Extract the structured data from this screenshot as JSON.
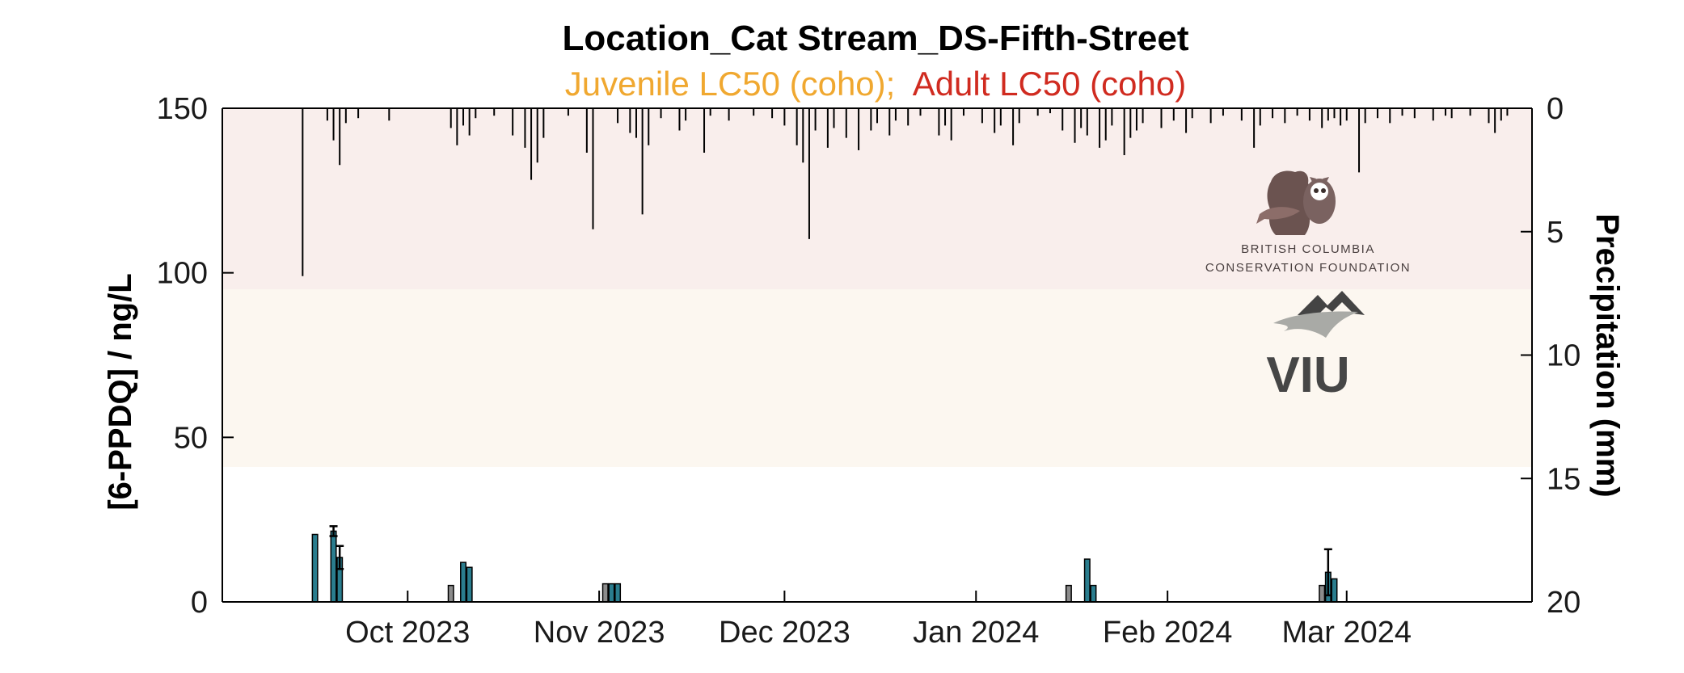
{
  "chart_data": {
    "type": "bar",
    "title": "Location_Cat Stream_DS-Fifth-Street",
    "subtitle_juvenile": "Juvenile LC50 (coho);",
    "subtitle_adult": "Adult LC50 (coho)",
    "ylabel": "[6-PPDQ] / ng/L",
    "y2label": "Precipitation (mm)",
    "ylim": [
      0,
      150
    ],
    "y2lim": [
      0,
      20
    ],
    "y2_reversed": true,
    "yticks": [
      "0",
      "50",
      "100",
      "150"
    ],
    "y2ticks": [
      "0",
      "5",
      "10",
      "15",
      "20"
    ],
    "x_start": "2023-09-01",
    "x_end": "2024-03-31",
    "xticks": [
      {
        "date": "2023-10-01",
        "label": "Oct 2023"
      },
      {
        "date": "2023-11-01",
        "label": "Nov 2023"
      },
      {
        "date": "2023-12-01",
        "label": "Dec 2023"
      },
      {
        "date": "2024-01-01",
        "label": "Jan 2024"
      },
      {
        "date": "2024-02-01",
        "label": "Feb 2024"
      },
      {
        "date": "2024-03-01",
        "label": "Mar 2024"
      }
    ],
    "threshold_bands": [
      {
        "name": "Adult LC50 (coho)",
        "from": 95,
        "to": 150,
        "color": "#f9eeec"
      },
      {
        "name": "Juvenile LC50 (coho)",
        "from": 41,
        "to": 95,
        "color": "#fcf7f0"
      }
    ],
    "series": [
      {
        "kind": "concentration",
        "color_teal": "#2a7d8e",
        "color_grey": "#8c8c8c",
        "bars": [
          {
            "date": "2023-09-16",
            "value": 20.5,
            "color": "teal"
          },
          {
            "date": "2023-09-19",
            "value": 21.5,
            "color": "teal",
            "err": 1.5
          },
          {
            "date": "2023-09-20",
            "value": 13.5,
            "color": "teal",
            "err": 3.5
          },
          {
            "date": "2023-10-08",
            "value": 5,
            "color": "grey"
          },
          {
            "date": "2023-10-10",
            "value": 12,
            "color": "teal"
          },
          {
            "date": "2023-10-11",
            "value": 10.5,
            "color": "teal"
          },
          {
            "date": "2023-11-02",
            "value": 5.5,
            "color": "grey"
          },
          {
            "date": "2023-11-03",
            "value": 5.5,
            "color": "teal"
          },
          {
            "date": "2023-11-04",
            "value": 5.5,
            "color": "teal"
          },
          {
            "date": "2024-01-16",
            "value": 5,
            "color": "grey"
          },
          {
            "date": "2024-01-19",
            "value": 13,
            "color": "teal"
          },
          {
            "date": "2024-01-20",
            "value": 5,
            "color": "teal"
          },
          {
            "date": "2024-02-26",
            "value": 5,
            "color": "grey"
          },
          {
            "date": "2024-02-27",
            "value": 9,
            "color": "teal",
            "err": 7
          },
          {
            "date": "2024-02-28",
            "value": 7,
            "color": "teal"
          }
        ]
      },
      {
        "kind": "precipitation",
        "color": "#000000",
        "events": [
          [
            "2023-09-14",
            6.8
          ],
          [
            "2023-09-18",
            0.5
          ],
          [
            "2023-09-19",
            1.3
          ],
          [
            "2023-09-20",
            2.3
          ],
          [
            "2023-09-21",
            0.6
          ],
          [
            "2023-09-23",
            0.4
          ],
          [
            "2023-09-28",
            0.5
          ],
          [
            "2023-10-08",
            0.8
          ],
          [
            "2023-10-09",
            1.5
          ],
          [
            "2023-10-10",
            0.7
          ],
          [
            "2023-10-11",
            1.1
          ],
          [
            "2023-10-12",
            0.4
          ],
          [
            "2023-10-15",
            0.3
          ],
          [
            "2023-10-18",
            1.1
          ],
          [
            "2023-10-20",
            1.6
          ],
          [
            "2023-10-21",
            2.9
          ],
          [
            "2023-10-22",
            2.2
          ],
          [
            "2023-10-23",
            1.2
          ],
          [
            "2023-10-27",
            0.3
          ],
          [
            "2023-10-30",
            1.8
          ],
          [
            "2023-10-31",
            4.9
          ],
          [
            "2023-11-04",
            0.6
          ],
          [
            "2023-11-06",
            1.0
          ],
          [
            "2023-11-07",
            1.2
          ],
          [
            "2023-11-08",
            4.3
          ],
          [
            "2023-11-09",
            1.5
          ],
          [
            "2023-11-11",
            0.4
          ],
          [
            "2023-11-14",
            0.9
          ],
          [
            "2023-11-15",
            0.5
          ],
          [
            "2023-11-18",
            1.8
          ],
          [
            "2023-11-19",
            0.3
          ],
          [
            "2023-11-22",
            0.5
          ],
          [
            "2023-11-26",
            0.3
          ],
          [
            "2023-11-29",
            0.4
          ],
          [
            "2023-12-01",
            0.7
          ],
          [
            "2023-12-03",
            1.5
          ],
          [
            "2023-12-04",
            2.2
          ],
          [
            "2023-12-05",
            5.3
          ],
          [
            "2023-12-06",
            0.9
          ],
          [
            "2023-12-08",
            1.6
          ],
          [
            "2023-12-09",
            0.8
          ],
          [
            "2023-12-11",
            1.2
          ],
          [
            "2023-12-13",
            1.7
          ],
          [
            "2023-12-15",
            0.9
          ],
          [
            "2023-12-16",
            0.6
          ],
          [
            "2023-12-18",
            1.1
          ],
          [
            "2023-12-19",
            0.5
          ],
          [
            "2023-12-21",
            0.7
          ],
          [
            "2023-12-23",
            0.3
          ],
          [
            "2023-12-26",
            1.1
          ],
          [
            "2023-12-27",
            0.7
          ],
          [
            "2023-12-28",
            1.3
          ],
          [
            "2023-12-30",
            0.3
          ],
          [
            "2024-01-02",
            0.6
          ],
          [
            "2024-01-04",
            1.0
          ],
          [
            "2024-01-05",
            0.7
          ],
          [
            "2024-01-07",
            1.5
          ],
          [
            "2024-01-08",
            0.6
          ],
          [
            "2024-01-11",
            0.3
          ],
          [
            "2024-01-13",
            0.2
          ],
          [
            "2024-01-15",
            0.9
          ],
          [
            "2024-01-17",
            1.4
          ],
          [
            "2024-01-18",
            0.8
          ],
          [
            "2024-01-19",
            1.1
          ],
          [
            "2024-01-21",
            1.6
          ],
          [
            "2024-01-22",
            1.3
          ],
          [
            "2024-01-23",
            0.7
          ],
          [
            "2024-01-25",
            1.9
          ],
          [
            "2024-01-26",
            1.2
          ],
          [
            "2024-01-27",
            0.9
          ],
          [
            "2024-01-28",
            0.6
          ],
          [
            "2024-01-31",
            0.8
          ],
          [
            "2024-02-02",
            0.5
          ],
          [
            "2024-02-04",
            1.0
          ],
          [
            "2024-02-05",
            0.4
          ],
          [
            "2024-02-08",
            0.6
          ],
          [
            "2024-02-10",
            0.3
          ],
          [
            "2024-02-13",
            0.5
          ],
          [
            "2024-02-15",
            1.6
          ],
          [
            "2024-02-16",
            0.7
          ],
          [
            "2024-02-18",
            0.4
          ],
          [
            "2024-02-20",
            0.6
          ],
          [
            "2024-02-22",
            0.3
          ],
          [
            "2024-02-24",
            0.5
          ],
          [
            "2024-02-26",
            0.8
          ],
          [
            "2024-02-27",
            0.5
          ],
          [
            "2024-02-28",
            0.4
          ],
          [
            "2024-02-29",
            0.7
          ],
          [
            "2024-03-01",
            0.5
          ],
          [
            "2024-03-03",
            2.6
          ],
          [
            "2024-03-04",
            0.6
          ],
          [
            "2024-03-06",
            0.4
          ],
          [
            "2024-03-08",
            0.6
          ],
          [
            "2024-03-10",
            0.3
          ],
          [
            "2024-03-12",
            0.4
          ],
          [
            "2024-03-15",
            0.5
          ],
          [
            "2024-03-17",
            0.3
          ],
          [
            "2024-03-18",
            0.4
          ],
          [
            "2024-03-21",
            0.3
          ],
          [
            "2024-03-24",
            0.6
          ],
          [
            "2024-03-25",
            1.0
          ],
          [
            "2024-03-26",
            0.5
          ],
          [
            "2024-03-27",
            0.3
          ]
        ]
      }
    ],
    "grid": false,
    "legend": "none"
  },
  "logos": {
    "bccf_line1": "BRITISH COLUMBIA",
    "bccf_line2": "CONSERVATION FOUNDATION",
    "viu": "VIU"
  }
}
